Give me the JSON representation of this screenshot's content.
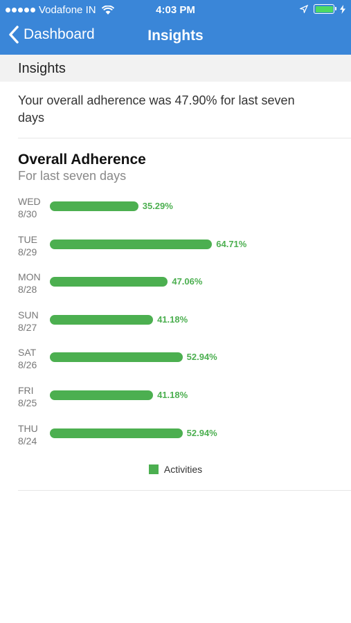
{
  "status_bar": {
    "carrier": "Vodafone IN",
    "time": "4:03 PM",
    "battery_color": "#4cd964"
  },
  "nav": {
    "back_label": "Dashboard",
    "title": "Insights"
  },
  "section": {
    "title": "Insights"
  },
  "summary": {
    "text": "Your overall adherence was 47.90% for last seven days"
  },
  "chart": {
    "title": "Overall Adherence",
    "subtitle": "For last seven days"
  },
  "chart_data": {
    "type": "bar",
    "orientation": "horizontal",
    "categories": [
      {
        "day": "WED",
        "date": "8/30"
      },
      {
        "day": "TUE",
        "date": "8/29"
      },
      {
        "day": "MON",
        "date": "8/28"
      },
      {
        "day": "SUN",
        "date": "8/27"
      },
      {
        "day": "SAT",
        "date": "8/26"
      },
      {
        "day": "FRI",
        "date": "8/25"
      },
      {
        "day": "THU",
        "date": "8/24"
      }
    ],
    "series": [
      {
        "name": "Activities",
        "color": "#4caf50",
        "values": [
          35.29,
          64.71,
          47.06,
          41.18,
          52.94,
          41.18,
          52.94
        ],
        "labels": [
          "35.29%",
          "64.71%",
          "47.06%",
          "41.18%",
          "52.94%",
          "41.18%",
          "52.94%"
        ]
      }
    ],
    "legend": "bottom-center",
    "grid": false
  },
  "legend": {
    "label": "Activities"
  }
}
